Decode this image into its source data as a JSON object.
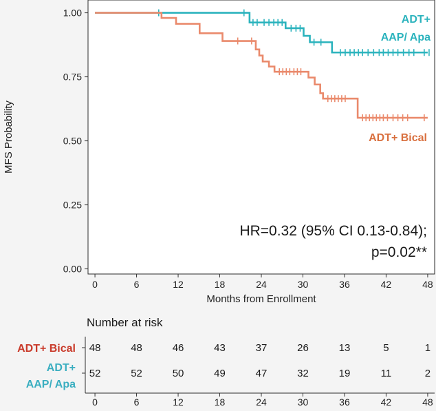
{
  "chart_data": {
    "type": "line",
    "subtype": "kaplan-meier",
    "title": "",
    "xlabel": "Months from Enrollment",
    "ylabel": "MFS Probability",
    "xlim": [
      -1,
      49
    ],
    "ylim": [
      -0.02,
      1.05
    ],
    "x_ticks": [
      0,
      6,
      12,
      18,
      24,
      30,
      36,
      42,
      48
    ],
    "x_tick_labels": [
      "0",
      "6",
      "12",
      "18",
      "24",
      "30",
      "36",
      "42",
      "48"
    ],
    "y_ticks": [
      0,
      0.25,
      0.5,
      0.75,
      1
    ],
    "y_tick_labels": [
      "0.00",
      "0.25",
      "0.50",
      "0.75",
      "1.00"
    ],
    "grid": false,
    "annotation_lines": [
      "HR=0.32 (95% CI 0.13-0.84);",
      "p=0.02**"
    ],
    "series": [
      {
        "name": "ADT+ AAP/ Apa",
        "label_lines": [
          "ADT+",
          "AAP/ Apa"
        ],
        "color": "#2bb3bd",
        "steps": [
          [
            0,
            1.0
          ],
          [
            22.3,
            0.962
          ],
          [
            27.5,
            0.94
          ],
          [
            30.1,
            0.91
          ],
          [
            31.0,
            0.885
          ],
          [
            34.2,
            0.845
          ],
          [
            48,
            0.845
          ]
        ],
        "censor_times": [
          9.2,
          21.5,
          22.8,
          23.4,
          24.4,
          25.1,
          25.8,
          26.4,
          27.0,
          28.3,
          29.0,
          29.6,
          31.6,
          32.6,
          35.4,
          36.1,
          36.8,
          37.4,
          38.0,
          38.6,
          39.4,
          40.2,
          41.0,
          41.6,
          42.3,
          43.0,
          43.7,
          44.5,
          45.3,
          46.0,
          47.5,
          48.2
        ]
      },
      {
        "name": "ADT+ Bical",
        "label_lines": [
          "ADT+ Bical"
        ],
        "color": "#ea8a6c",
        "steps": [
          [
            0,
            1.0
          ],
          [
            9.6,
            0.98
          ],
          [
            11.7,
            0.957
          ],
          [
            15.1,
            0.92
          ],
          [
            18.4,
            0.89
          ],
          [
            23.2,
            0.857
          ],
          [
            23.7,
            0.833
          ],
          [
            24.2,
            0.81
          ],
          [
            25.1,
            0.79
          ],
          [
            25.9,
            0.77
          ],
          [
            30.8,
            0.747
          ],
          [
            31.7,
            0.72
          ],
          [
            32.5,
            0.686
          ],
          [
            32.9,
            0.665
          ],
          [
            37.9,
            0.59
          ],
          [
            48,
            0.59
          ]
        ],
        "censor_times": [
          20.6,
          22.6,
          26.6,
          27.1,
          27.6,
          28.1,
          28.7,
          29.2,
          29.7,
          33.6,
          34.1,
          34.6,
          35.1,
          35.6,
          36.1,
          38.6,
          39.1,
          39.6,
          40.1,
          40.6,
          41.1,
          41.6,
          42.2,
          43.0,
          43.7,
          44.4,
          45.1,
          47.5
        ]
      }
    ]
  },
  "risk_table": {
    "title": "Number at risk",
    "x_ticks": [
      "0",
      "6",
      "12",
      "18",
      "24",
      "30",
      "36",
      "42",
      "48"
    ],
    "rows": [
      {
        "label_lines": [
          "ADT+ Bical"
        ],
        "color": "#c93a2a",
        "counts": [
          "48",
          "48",
          "46",
          "43",
          "37",
          "26",
          "13",
          "5",
          "1"
        ]
      },
      {
        "label_lines": [
          "ADT+",
          "AAP/ Apa"
        ],
        "color": "#3aaec0",
        "counts": [
          "52",
          "52",
          "50",
          "49",
          "47",
          "32",
          "19",
          "11",
          "2"
        ]
      }
    ]
  }
}
